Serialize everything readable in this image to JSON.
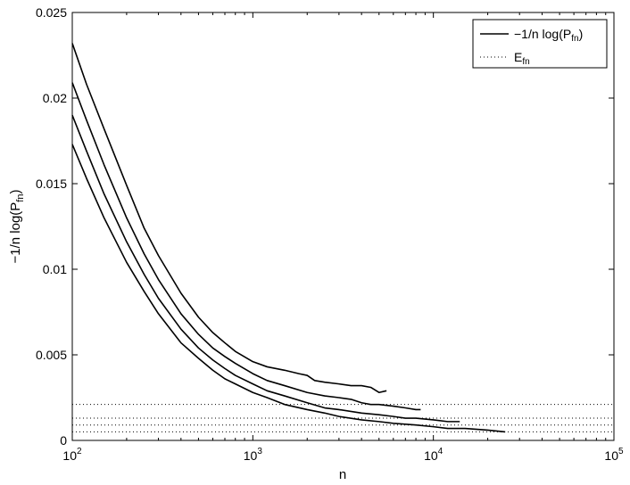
{
  "chart_data": {
    "type": "line",
    "title": "",
    "xlabel": "n",
    "ylabel": "−1/n log(P_fn)",
    "x_scale": "log",
    "xlim": [
      100,
      100000
    ],
    "ylim": [
      0,
      0.025
    ],
    "grid": false,
    "legend_position": "top-right",
    "x_ticks": [
      {
        "value": 100,
        "base": "10",
        "exp": "2"
      },
      {
        "value": 1000,
        "base": "10",
        "exp": "3"
      },
      {
        "value": 10000,
        "base": "10",
        "exp": "4"
      },
      {
        "value": 100000,
        "base": "10",
        "exp": "5"
      }
    ],
    "y_ticks": [
      {
        "value": 0,
        "label": "0"
      },
      {
        "value": 0.005,
        "label": "0.005"
      },
      {
        "value": 0.01,
        "label": "0.01"
      },
      {
        "value": 0.015,
        "label": "0.015"
      },
      {
        "value": 0.02,
        "label": "0.02"
      },
      {
        "value": 0.025,
        "label": "0.025"
      }
    ],
    "legend": [
      {
        "base": "−1/n log(P",
        "sub": "fn",
        "suffix": ")",
        "style": "solid"
      },
      {
        "base": "E",
        "sub": "fn",
        "suffix": "",
        "style": "dotted"
      }
    ],
    "series": [
      {
        "group": "solid",
        "x": [
          100,
          120,
          150,
          200,
          250,
          300,
          400,
          500,
          600,
          700,
          800,
          1000,
          1200,
          1500,
          1800,
          2000,
          2200,
          2500,
          3000,
          3500,
          4000,
          4500,
          5000,
          5500
        ],
        "y": [
          0.0232,
          0.0208,
          0.0182,
          0.0149,
          0.0124,
          0.0108,
          0.0086,
          0.0072,
          0.0063,
          0.0057,
          0.0052,
          0.0046,
          0.0043,
          0.0041,
          0.0039,
          0.0038,
          0.0035,
          0.0034,
          0.0033,
          0.0032,
          0.0032,
          0.0031,
          0.0028,
          0.0029
        ]
      },
      {
        "group": "solid",
        "x": [
          100,
          120,
          150,
          200,
          250,
          300,
          400,
          500,
          600,
          700,
          800,
          1000,
          1200,
          1500,
          2000,
          2500,
          3000,
          3500,
          4000,
          4500,
          5000,
          6000,
          7000,
          8000,
          8500
        ],
        "y": [
          0.0209,
          0.0187,
          0.0161,
          0.013,
          0.0109,
          0.0094,
          0.0074,
          0.0062,
          0.0054,
          0.0049,
          0.0045,
          0.0039,
          0.0035,
          0.0032,
          0.0028,
          0.0026,
          0.0025,
          0.0024,
          0.0022,
          0.0021,
          0.0021,
          0.002,
          0.0019,
          0.0018,
          0.0018
        ]
      },
      {
        "group": "solid",
        "x": [
          100,
          120,
          150,
          200,
          250,
          300,
          400,
          500,
          600,
          700,
          800,
          1000,
          1200,
          1500,
          2000,
          2500,
          3000,
          4000,
          5000,
          6000,
          7000,
          8000,
          10000,
          12000,
          14000
        ],
        "y": [
          0.019,
          0.0169,
          0.0144,
          0.0116,
          0.0097,
          0.0083,
          0.0065,
          0.0054,
          0.0047,
          0.0042,
          0.0038,
          0.0033,
          0.0029,
          0.0026,
          0.0022,
          0.0019,
          0.0018,
          0.0016,
          0.0015,
          0.0014,
          0.0013,
          0.0013,
          0.0012,
          0.0011,
          0.0011
        ]
      },
      {
        "group": "solid",
        "x": [
          100,
          120,
          150,
          200,
          250,
          300,
          400,
          500,
          600,
          700,
          800,
          1000,
          1200,
          1500,
          2000,
          2500,
          3000,
          4000,
          5000,
          6000,
          8000,
          10000,
          12000,
          15000,
          20000,
          25000
        ],
        "y": [
          0.0173,
          0.0153,
          0.013,
          0.0104,
          0.0087,
          0.0074,
          0.0057,
          0.0048,
          0.0041,
          0.0036,
          0.0033,
          0.0028,
          0.0025,
          0.0021,
          0.0018,
          0.0016,
          0.0014,
          0.0012,
          0.0011,
          0.001,
          0.0009,
          0.0008,
          0.0007,
          0.0007,
          0.0006,
          0.0005
        ]
      }
    ],
    "reference_lines": {
      "group": "dotted",
      "y": [
        0.0021,
        0.0013,
        0.0009,
        0.0005
      ]
    }
  }
}
